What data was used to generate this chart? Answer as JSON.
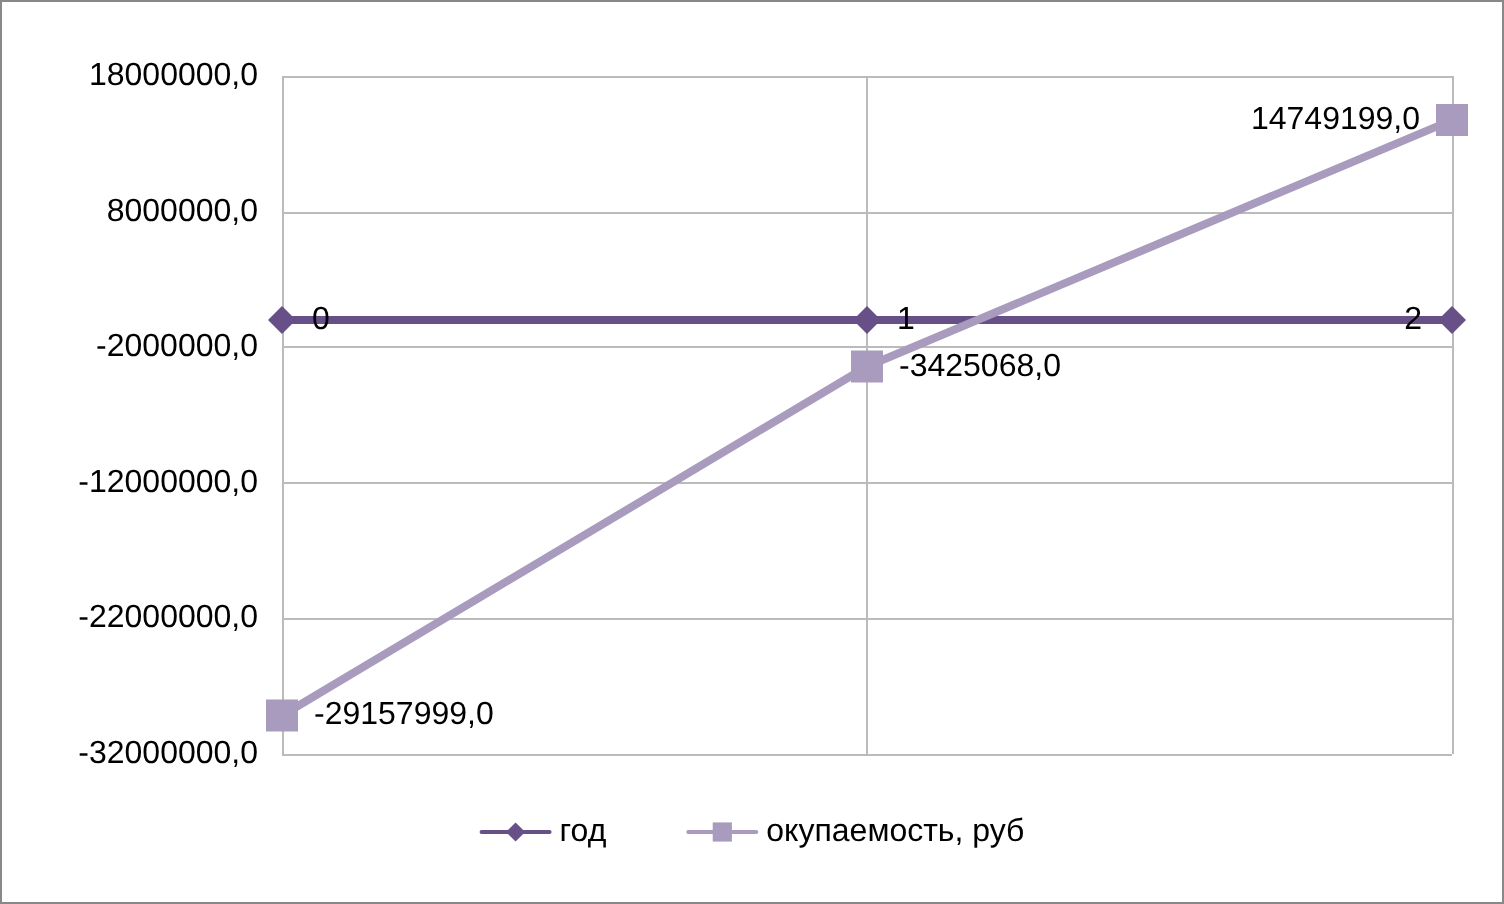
{
  "chart_data": {
    "type": "line",
    "categories": [
      null,
      null,
      null
    ],
    "series": [
      {
        "name": "год",
        "color": "#675087",
        "marker": "diamond",
        "values": [
          0,
          1,
          2
        ],
        "value_labels": [
          "0",
          "1",
          "2"
        ]
      },
      {
        "name": "окупаемость, руб",
        "color": "#a99bbd",
        "marker": "square",
        "values": [
          -29157999,
          -3425068,
          14749199
        ],
        "value_labels": [
          "-29157999,0",
          "-3425068,0",
          "14749199,0"
        ]
      }
    ],
    "ylim": [
      -32000000,
      18000000
    ],
    "yticks": [
      {
        "value": -32000000,
        "label": "-32000000,0"
      },
      {
        "value": -22000000,
        "label": "-22000000,0"
      },
      {
        "value": -12000000,
        "label": "-12000000,0"
      },
      {
        "value": -2000000,
        "label": "-2000000,0"
      },
      {
        "value": 8000000,
        "label": "8000000,0"
      },
      {
        "value": 18000000,
        "label": "18000000,0"
      }
    ],
    "grid": true,
    "legend": "bottom"
  }
}
